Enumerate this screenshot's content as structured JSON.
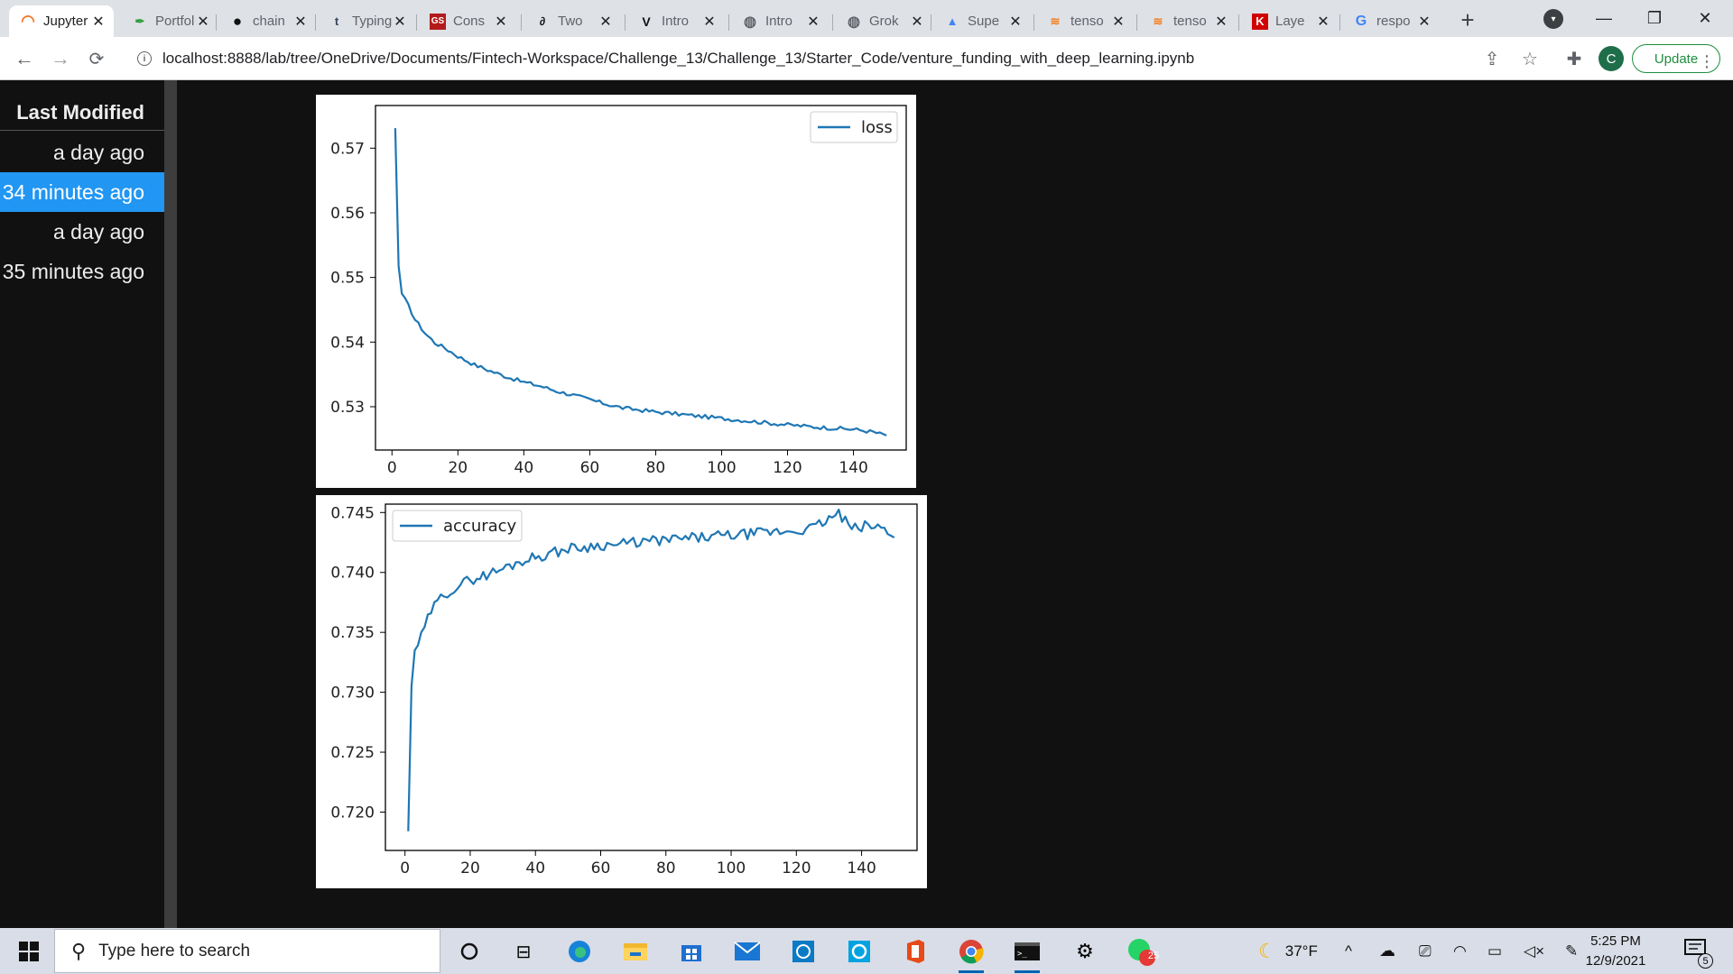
{
  "browser": {
    "tabs": [
      {
        "title": "Jupyter",
        "icon": "jupyter-icon",
        "active": true
      },
      {
        "title": "Portfolio",
        "icon": "feather-icon"
      },
      {
        "title": "chain",
        "icon": "github-icon"
      },
      {
        "title": "Typing",
        "icon": "tumblr-icon"
      },
      {
        "title": "Cons",
        "icon": "gs-icon"
      },
      {
        "title": "Two",
        "icon": "arc-icon"
      },
      {
        "title": "Intro",
        "icon": "v-icon"
      },
      {
        "title": "Intro",
        "icon": "globe-icon"
      },
      {
        "title": "Grok",
        "icon": "globe-icon"
      },
      {
        "title": "Supe",
        "icon": "cap-icon"
      },
      {
        "title": "tenso",
        "icon": "stack-icon"
      },
      {
        "title": "tenso",
        "icon": "stack-icon"
      },
      {
        "title": "Laye",
        "icon": "k-icon"
      },
      {
        "title": "respo",
        "icon": "google-icon"
      }
    ],
    "url": "localhost:8888/lab/tree/OneDrive/Documents/Fintech-Workspace/Challenge_13/Challenge_13/Starter_Code/venture_funding_with_deep_learning.ipynb",
    "avatar_letter": "C",
    "update_label": "Update"
  },
  "sidebar": {
    "header": "Last Modified",
    "rows": [
      {
        "label": "a day ago",
        "selected": false
      },
      {
        "label": "34 minutes ago",
        "selected": true
      },
      {
        "label": "a day ago",
        "selected": false
      },
      {
        "label": "35 minutes ago",
        "selected": false
      }
    ]
  },
  "chart_data": [
    {
      "type": "line",
      "series": [
        {
          "name": "loss",
          "color": "#1f77b4"
        }
      ],
      "x": [
        1,
        150
      ],
      "xlim": [
        -5,
        156
      ],
      "ylim": [
        0.5233,
        0.5766
      ],
      "xticks": [
        "0",
        "20",
        "40",
        "60",
        "80",
        "100",
        "120",
        "140"
      ],
      "yticks": [
        "0.53",
        "0.54",
        "0.55",
        "0.56",
        "0.57"
      ],
      "legend_position": "upper right",
      "values_sample": [
        [
          1,
          0.5731
        ],
        [
          2,
          0.5518
        ],
        [
          3,
          0.5475
        ],
        [
          5,
          0.5456
        ],
        [
          7,
          0.5435
        ],
        [
          10,
          0.5414
        ],
        [
          13,
          0.5399
        ],
        [
          16,
          0.5391
        ],
        [
          20,
          0.5378
        ],
        [
          25,
          0.5365
        ],
        [
          30,
          0.5355
        ],
        [
          35,
          0.5346
        ],
        [
          40,
          0.5338
        ],
        [
          45,
          0.5332
        ],
        [
          50,
          0.5324
        ],
        [
          55,
          0.5318
        ],
        [
          60,
          0.5311
        ],
        [
          65,
          0.5304
        ],
        [
          70,
          0.5298
        ],
        [
          80,
          0.5292
        ],
        [
          90,
          0.5287
        ],
        [
          100,
          0.5282
        ],
        [
          110,
          0.5277
        ],
        [
          120,
          0.5272
        ],
        [
          130,
          0.5268
        ],
        [
          140,
          0.5265
        ],
        [
          146,
          0.5261
        ],
        [
          148,
          0.5258
        ],
        [
          150,
          0.5256
        ]
      ]
    },
    {
      "type": "line",
      "series": [
        {
          "name": "accuracy",
          "color": "#1f77b4"
        }
      ],
      "x": [
        1,
        150
      ],
      "xlim": [
        -6,
        157
      ],
      "ylim": [
        0.7168,
        0.7457
      ],
      "xticks": [
        "0",
        "20",
        "40",
        "60",
        "80",
        "100",
        "120",
        "140"
      ],
      "yticks": [
        "0.720",
        "0.725",
        "0.730",
        "0.735",
        "0.740",
        "0.745"
      ],
      "legend_position": "upper left",
      "values_sample": [
        [
          1,
          0.7184
        ],
        [
          2,
          0.7305
        ],
        [
          3,
          0.7335
        ],
        [
          5,
          0.7346
        ],
        [
          8,
          0.7368
        ],
        [
          12,
          0.7382
        ],
        [
          16,
          0.7388
        ],
        [
          20,
          0.7394
        ],
        [
          25,
          0.7398
        ],
        [
          30,
          0.7403
        ],
        [
          35,
          0.7409
        ],
        [
          40,
          0.7413
        ],
        [
          45,
          0.7416
        ],
        [
          50,
          0.742
        ],
        [
          55,
          0.7421
        ],
        [
          60,
          0.7423
        ],
        [
          65,
          0.7423
        ],
        [
          70,
          0.7425
        ],
        [
          80,
          0.7427
        ],
        [
          90,
          0.7429
        ],
        [
          100,
          0.7431
        ],
        [
          110,
          0.7433
        ],
        [
          120,
          0.7435
        ],
        [
          125,
          0.7437
        ],
        [
          133,
          0.7449
        ],
        [
          137,
          0.7436
        ],
        [
          142,
          0.7439
        ],
        [
          146,
          0.7437
        ],
        [
          150,
          0.7432
        ]
      ]
    }
  ],
  "taskbar": {
    "search_placeholder": "Type here to search",
    "weather": "37°F",
    "time": "5:25 PM",
    "date": "12/9/2021",
    "whatsapp_badge": "25",
    "notification_count": "5"
  }
}
